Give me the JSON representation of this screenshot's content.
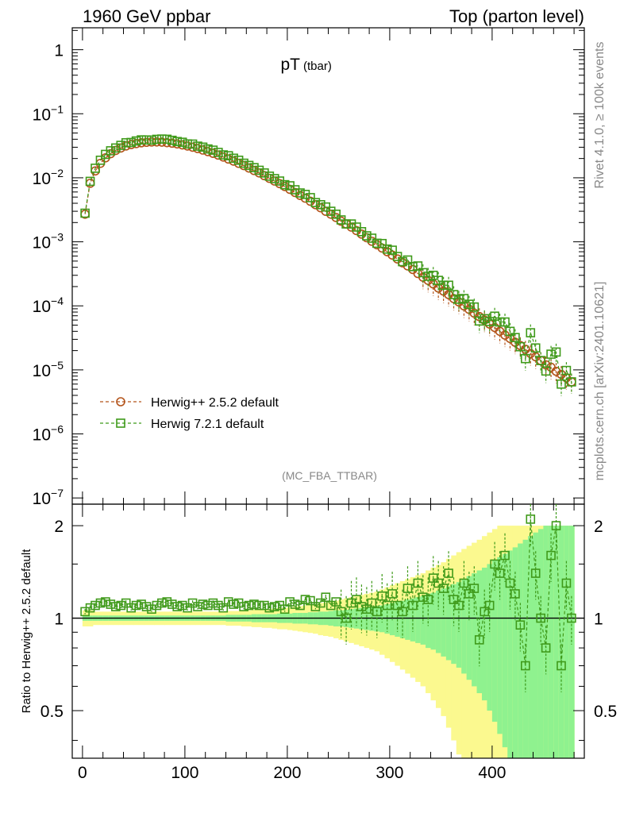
{
  "header": {
    "left": "1960 GeV ppbar",
    "right": "Top (parton level)"
  },
  "side_labels": {
    "rivet": "Rivet 4.1.0, ≥ 100k events",
    "mcplots": "mcplots.cern.ch [arXiv:2401.10621]"
  },
  "analysis_tag": "(MC_FBA_TTBAR)",
  "chart_data": {
    "type": "line",
    "title": "pT",
    "title_sub": "(tbar)",
    "xlabel": "",
    "ylabel": "",
    "ratio_ylabel": "Ratio to Herwig++ 2.5.2 default",
    "xlim": [
      -10,
      490
    ],
    "ylim": [
      8e-08,
      2.2
    ],
    "yscale": "log",
    "ratio_ylim": [
      0.35,
      2.35
    ],
    "x_ticks": [
      0,
      100,
      200,
      300,
      400
    ],
    "x_tick_labels": [
      "0",
      "100",
      "200",
      "300",
      "400"
    ],
    "y_ticks": [
      1,
      0.1,
      0.01,
      0.001,
      0.0001,
      1e-05,
      1e-06,
      1e-07
    ],
    "y_tick_labels": [
      {
        "base": "1",
        "exp": ""
      },
      {
        "base": "10",
        "exp": "−1"
      },
      {
        "base": "10",
        "exp": "−2"
      },
      {
        "base": "10",
        "exp": "−3"
      },
      {
        "base": "10",
        "exp": "−4"
      },
      {
        "base": "10",
        "exp": "−5"
      },
      {
        "base": "10",
        "exp": "−6"
      },
      {
        "base": "10",
        "exp": "−7"
      }
    ],
    "ratio_ticks": [
      0.5,
      1,
      2
    ],
    "ratio_tick_labels": [
      "0.5",
      "1",
      "2"
    ],
    "series": [
      {
        "name": "Herwig++ 2.5.2 default",
        "color": "#b3531a",
        "marker": "circle",
        "x": [
          2.5,
          7.5,
          12.5,
          17.5,
          22.5,
          27.5,
          32.5,
          37.5,
          42.5,
          47.5,
          52.5,
          57.5,
          62.5,
          67.5,
          72.5,
          77.5,
          82.5,
          87.5,
          92.5,
          97.5,
          102.5,
          107.5,
          112.5,
          117.5,
          122.5,
          127.5,
          132.5,
          137.5,
          142.5,
          147.5,
          152.5,
          157.5,
          162.5,
          167.5,
          172.5,
          177.5,
          182.5,
          187.5,
          192.5,
          197.5,
          202.5,
          207.5,
          212.5,
          217.5,
          222.5,
          227.5,
          232.5,
          237.5,
          242.5,
          247.5,
          252.5,
          257.5,
          262.5,
          267.5,
          272.5,
          277.5,
          282.5,
          287.5,
          292.5,
          297.5,
          302.5,
          307.5,
          312.5,
          317.5,
          322.5,
          327.5,
          332.5,
          337.5,
          342.5,
          347.5,
          352.5,
          357.5,
          362.5,
          367.5,
          372.5,
          377.5,
          382.5,
          387.5,
          392.5,
          397.5,
          402.5,
          407.5,
          412.5,
          417.5,
          422.5,
          427.5,
          432.5,
          437.5,
          442.5,
          447.5,
          452.5,
          457.5,
          462.5,
          467.5,
          472.5,
          477.5
        ],
        "values": [
          0.0027,
          0.0082,
          0.0128,
          0.0168,
          0.0205,
          0.0238,
          0.0268,
          0.0292,
          0.0314,
          0.033,
          0.0342,
          0.0352,
          0.0358,
          0.0362,
          0.0363,
          0.036,
          0.0354,
          0.0347,
          0.0338,
          0.0326,
          0.0313,
          0.03,
          0.0286,
          0.0271,
          0.0256,
          0.0241,
          0.0226,
          0.0211,
          0.0196,
          0.0182,
          0.0168,
          0.0155,
          0.0142,
          0.013,
          0.0119,
          0.0108,
          0.0098,
          0.0089,
          0.0081,
          0.0073,
          0.0066,
          0.0059,
          0.0053,
          0.0048,
          0.0043,
          0.0038,
          0.0034,
          0.003,
          0.0027,
          0.0024,
          0.0021,
          0.0019,
          0.0017,
          0.0015,
          0.00132,
          0.00116,
          0.00102,
          0.0009,
          0.0008,
          0.0007,
          0.00062,
          0.00054,
          0.00047,
          0.00042,
          0.00037,
          0.00032,
          0.00028,
          0.00025,
          0.00022,
          0.00019,
          0.00017,
          0.00015,
          0.00013,
          0.000115,
          0.0001,
          8.8e-05,
          7.7e-05,
          6.8e-05,
          6e-05,
          5.2e-05,
          4.6e-05,
          4e-05,
          3.5e-05,
          3.1e-05,
          2.7e-05,
          2.4e-05,
          2.1e-05,
          1.8e-05,
          1.6e-05,
          1.4e-05,
          1.2e-05,
          1.1e-05,
          9.5e-06,
          8.5e-06,
          7.5e-06,
          6.5e-06
        ],
        "ratio": [
          1,
          1,
          1,
          1,
          1,
          1,
          1,
          1,
          1,
          1,
          1,
          1,
          1,
          1,
          1,
          1,
          1,
          1,
          1,
          1,
          1,
          1,
          1,
          1,
          1,
          1,
          1,
          1,
          1,
          1,
          1,
          1,
          1,
          1,
          1,
          1,
          1,
          1,
          1,
          1,
          1,
          1,
          1,
          1,
          1,
          1,
          1,
          1,
          1,
          1,
          1,
          1,
          1,
          1,
          1,
          1,
          1,
          1,
          1,
          1,
          1,
          1,
          1,
          1,
          1,
          1,
          1,
          1,
          1,
          1,
          1,
          1,
          1,
          1,
          1,
          1,
          1,
          1,
          1,
          1,
          1,
          1,
          1,
          1,
          1,
          1,
          1,
          1,
          1,
          1,
          1,
          1,
          1,
          1,
          1,
          1
        ],
        "ratio_band_green": [
          0.02,
          0.02,
          0.02,
          0.02,
          0.02,
          0.02,
          0.02,
          0.02,
          0.02,
          0.02,
          0.02,
          0.02,
          0.02,
          0.02,
          0.02,
          0.02,
          0.02,
          0.02,
          0.02,
          0.02,
          0.02,
          0.02,
          0.02,
          0.02,
          0.02,
          0.02,
          0.02,
          0.02,
          0.025,
          0.025,
          0.025,
          0.025,
          0.025,
          0.03,
          0.03,
          0.03,
          0.03,
          0.03,
          0.035,
          0.035,
          0.035,
          0.04,
          0.04,
          0.04,
          0.045,
          0.045,
          0.05,
          0.05,
          0.055,
          0.06,
          0.06,
          0.065,
          0.07,
          0.075,
          0.08,
          0.085,
          0.09,
          0.095,
          0.1,
          0.11,
          0.12,
          0.13,
          0.14,
          0.15,
          0.16,
          0.17,
          0.18,
          0.2,
          0.21,
          0.23,
          0.25,
          0.27,
          0.29,
          0.31,
          0.34,
          0.37,
          0.4,
          0.43,
          0.46,
          0.5,
          0.54,
          0.58,
          0.62,
          0.66,
          0.7,
          0.75,
          0.8,
          0.85,
          0.9,
          0.95,
          1.0,
          1.0,
          1.0,
          1.0,
          1.0,
          1.0
        ],
        "ratio_band_yellow": [
          0.06,
          0.06,
          0.05,
          0.05,
          0.05,
          0.05,
          0.05,
          0.05,
          0.05,
          0.05,
          0.05,
          0.05,
          0.05,
          0.05,
          0.05,
          0.05,
          0.05,
          0.05,
          0.05,
          0.05,
          0.05,
          0.05,
          0.05,
          0.05,
          0.05,
          0.05,
          0.05,
          0.05,
          0.055,
          0.055,
          0.055,
          0.06,
          0.06,
          0.065,
          0.065,
          0.07,
          0.07,
          0.075,
          0.08,
          0.08,
          0.085,
          0.09,
          0.095,
          0.1,
          0.105,
          0.11,
          0.12,
          0.125,
          0.13,
          0.14,
          0.15,
          0.16,
          0.17,
          0.18,
          0.19,
          0.2,
          0.21,
          0.22,
          0.24,
          0.26,
          0.28,
          0.3,
          0.32,
          0.34,
          0.36,
          0.38,
          0.4,
          0.43,
          0.46,
          0.49,
          0.52,
          0.56,
          0.6,
          0.64,
          0.68,
          0.72,
          0.76,
          0.8,
          0.85,
          0.9,
          0.95,
          1.0,
          1.0,
          1.0,
          1.0,
          1.0,
          1.0,
          1.0,
          1.0,
          1.0,
          1.0,
          1.0,
          1.0,
          1.0,
          1.0,
          1.0
        ]
      },
      {
        "name": "Herwig 7.2.1 default",
        "color": "#3f9a1a",
        "marker": "square",
        "x": [
          2.5,
          7.5,
          12.5,
          17.5,
          22.5,
          27.5,
          32.5,
          37.5,
          42.5,
          47.5,
          52.5,
          57.5,
          62.5,
          67.5,
          72.5,
          77.5,
          82.5,
          87.5,
          92.5,
          97.5,
          102.5,
          107.5,
          112.5,
          117.5,
          122.5,
          127.5,
          132.5,
          137.5,
          142.5,
          147.5,
          152.5,
          157.5,
          162.5,
          167.5,
          172.5,
          177.5,
          182.5,
          187.5,
          192.5,
          197.5,
          202.5,
          207.5,
          212.5,
          217.5,
          222.5,
          227.5,
          232.5,
          237.5,
          242.5,
          247.5,
          252.5,
          257.5,
          262.5,
          267.5,
          272.5,
          277.5,
          282.5,
          287.5,
          292.5,
          297.5,
          302.5,
          307.5,
          312.5,
          317.5,
          322.5,
          327.5,
          332.5,
          337.5,
          342.5,
          347.5,
          352.5,
          357.5,
          362.5,
          367.5,
          372.5,
          377.5,
          382.5,
          387.5,
          392.5,
          397.5,
          402.5,
          407.5,
          412.5,
          417.5,
          422.5,
          427.5,
          432.5,
          437.5,
          442.5,
          447.5,
          452.5,
          457.5,
          462.5,
          467.5,
          472.5,
          477.5
        ],
        "ratio": [
          1.05,
          1.08,
          1.1,
          1.12,
          1.13,
          1.11,
          1.09,
          1.1,
          1.12,
          1.08,
          1.1,
          1.11,
          1.09,
          1.07,
          1.1,
          1.12,
          1.13,
          1.11,
          1.09,
          1.1,
          1.08,
          1.12,
          1.09,
          1.11,
          1.1,
          1.12,
          1.1,
          1.08,
          1.13,
          1.11,
          1.12,
          1.09,
          1.1,
          1.11,
          1.1,
          1.1,
          1.08,
          1.09,
          1.1,
          1.07,
          1.13,
          1.11,
          1.1,
          1.15,
          1.14,
          1.09,
          1.12,
          1.17,
          1.1,
          1.13,
          1.05,
          1.0,
          1.12,
          1.15,
          1.09,
          1.07,
          1.12,
          1.05,
          1.18,
          1.1,
          1.2,
          1.1,
          1.05,
          1.25,
          1.1,
          1.3,
          1.17,
          1.15,
          1.35,
          1.3,
          1.25,
          1.4,
          1.15,
          1.1,
          1.3,
          1.2,
          1.25,
          0.85,
          1.05,
          1.1,
          1.5,
          1.4,
          1.6,
          1.3,
          1.2,
          0.95,
          0.7,
          2.1,
          1.4,
          1.0,
          0.8,
          1.6,
          2.0,
          0.7,
          1.3,
          1.0
        ],
        "values": [
          0.0028,
          0.0088,
          0.0141,
          0.0188,
          0.0232,
          0.0264,
          0.0292,
          0.0321,
          0.0352,
          0.0356,
          0.0376,
          0.0391,
          0.039,
          0.0387,
          0.0399,
          0.0403,
          0.04,
          0.0385,
          0.0368,
          0.0359,
          0.0338,
          0.0336,
          0.0312,
          0.0301,
          0.0282,
          0.027,
          0.0249,
          0.0228,
          0.0221,
          0.0202,
          0.0188,
          0.0169,
          0.0156,
          0.0144,
          0.0131,
          0.0119,
          0.0106,
          0.0097,
          0.0089,
          0.0078,
          0.0075,
          0.0065,
          0.0058,
          0.0055,
          0.0049,
          0.0041,
          0.0038,
          0.0035,
          0.003,
          0.0027,
          0.0022,
          0.0019,
          0.0019,
          0.0017,
          0.00144,
          0.00124,
          0.00114,
          0.00095,
          0.00094,
          0.00077,
          0.00074,
          0.00059,
          0.00049,
          0.00052,
          0.00041,
          0.00042,
          0.00033,
          0.00029,
          0.0003,
          0.00025,
          0.00021,
          0.00021,
          0.00015,
          0.000127,
          0.00013,
          0.000106,
          9.6e-05,
          5.8e-05,
          6.3e-05,
          5.7e-05,
          6.9e-05,
          5.6e-05,
          5.6e-05,
          4e-05,
          3.2e-05,
          2.3e-05,
          1.5e-05,
          3.8e-05,
          2.2e-05,
          1.4e-05,
          9.6e-06,
          1.76e-05,
          1.9e-05,
          6e-06,
          9.8e-06,
          6.5e-06
        ]
      }
    ]
  }
}
